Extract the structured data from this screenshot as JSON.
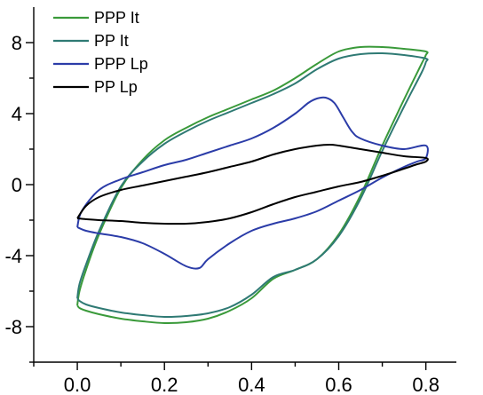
{
  "chart_data": {
    "type": "line",
    "title": "",
    "xlabel": "",
    "ylabel": "",
    "xlim": [
      -0.1,
      0.87
    ],
    "ylim": [
      -10,
      10
    ],
    "xticks": [
      0.0,
      0.2,
      0.4,
      0.6,
      0.8
    ],
    "xtick_labels": [
      "0.0",
      "0.2",
      "0.4",
      "0.6",
      "0.8"
    ],
    "xtick_minor": [
      -0.1,
      0.1,
      0.3,
      0.5,
      0.7
    ],
    "yticks": [
      -8,
      -4,
      0,
      4,
      8
    ],
    "ytick_labels": [
      "-8",
      "-4",
      "0",
      "4",
      "8"
    ],
    "ytick_minor": [
      -10,
      -6,
      -2,
      2,
      6
    ],
    "grid": false,
    "legend_position": "top-left",
    "series": [
      {
        "name": "PPP It",
        "color": "#3a9a3a",
        "x": [
          0.0,
          0.005,
          0.02,
          0.05,
          0.1,
          0.15,
          0.2,
          0.25,
          0.3,
          0.35,
          0.4,
          0.45,
          0.5,
          0.55,
          0.6,
          0.65,
          0.7,
          0.75,
          0.8,
          0.8,
          0.79,
          0.75,
          0.7,
          0.65,
          0.6,
          0.55,
          0.5,
          0.45,
          0.4,
          0.35,
          0.3,
          0.25,
          0.2,
          0.15,
          0.1,
          0.05,
          0.02,
          0.005,
          0.0
        ],
        "y": [
          -6.8,
          -6.0,
          -4.8,
          -2.8,
          -0.2,
          1.4,
          2.5,
          3.2,
          3.8,
          4.3,
          4.8,
          5.3,
          6.0,
          6.8,
          7.5,
          7.75,
          7.75,
          7.65,
          7.5,
          7.3,
          6.8,
          4.8,
          2.2,
          -0.6,
          -2.8,
          -4.2,
          -4.8,
          -5.3,
          -6.4,
          -7.1,
          -7.55,
          -7.75,
          -7.8,
          -7.7,
          -7.55,
          -7.3,
          -7.1,
          -6.95,
          -6.8
        ]
      },
      {
        "name": "PP It",
        "color": "#2f7a74",
        "x": [
          0.0,
          0.005,
          0.02,
          0.05,
          0.1,
          0.15,
          0.2,
          0.25,
          0.3,
          0.35,
          0.4,
          0.45,
          0.5,
          0.55,
          0.6,
          0.65,
          0.7,
          0.75,
          0.8,
          0.8,
          0.79,
          0.75,
          0.7,
          0.65,
          0.6,
          0.55,
          0.5,
          0.45,
          0.4,
          0.35,
          0.3,
          0.25,
          0.2,
          0.15,
          0.1,
          0.05,
          0.02,
          0.005,
          0.0
        ],
        "y": [
          -6.4,
          -5.6,
          -4.5,
          -2.6,
          -0.1,
          1.3,
          2.3,
          3.0,
          3.6,
          4.1,
          4.6,
          5.1,
          5.7,
          6.5,
          7.1,
          7.35,
          7.4,
          7.3,
          7.1,
          6.9,
          6.3,
          4.4,
          1.9,
          -0.8,
          -2.9,
          -4.2,
          -4.8,
          -5.2,
          -6.2,
          -6.9,
          -7.25,
          -7.4,
          -7.45,
          -7.35,
          -7.2,
          -6.95,
          -6.75,
          -6.55,
          -6.4
        ]
      },
      {
        "name": "PPP Lp",
        "color": "#2b3ca8",
        "x": [
          0.0,
          0.01,
          0.05,
          0.1,
          0.15,
          0.2,
          0.25,
          0.3,
          0.35,
          0.4,
          0.45,
          0.5,
          0.53,
          0.55,
          0.57,
          0.59,
          0.61,
          0.63,
          0.65,
          0.7,
          0.75,
          0.8,
          0.8,
          0.78,
          0.75,
          0.7,
          0.65,
          0.6,
          0.55,
          0.5,
          0.45,
          0.4,
          0.35,
          0.3,
          0.28,
          0.25,
          0.2,
          0.15,
          0.1,
          0.05,
          0.02,
          0.0
        ],
        "y": [
          -2.4,
          -1.5,
          -0.3,
          0.3,
          0.7,
          1.1,
          1.4,
          1.8,
          2.2,
          2.6,
          3.2,
          4.0,
          4.6,
          4.85,
          4.9,
          4.6,
          3.8,
          3.0,
          2.6,
          2.2,
          2.0,
          2.2,
          1.5,
          1.3,
          1.0,
          0.4,
          -0.3,
          -0.9,
          -1.5,
          -1.9,
          -2.2,
          -2.6,
          -3.3,
          -4.2,
          -4.7,
          -4.6,
          -3.9,
          -3.3,
          -2.95,
          -2.75,
          -2.6,
          -2.4
        ]
      },
      {
        "name": "PP Lp",
        "color": "#000000",
        "x": [
          0.0,
          0.02,
          0.05,
          0.1,
          0.15,
          0.2,
          0.25,
          0.3,
          0.35,
          0.4,
          0.45,
          0.5,
          0.55,
          0.58,
          0.6,
          0.65,
          0.7,
          0.75,
          0.8,
          0.8,
          0.78,
          0.75,
          0.7,
          0.65,
          0.6,
          0.55,
          0.5,
          0.45,
          0.4,
          0.35,
          0.3,
          0.25,
          0.2,
          0.15,
          0.1,
          0.05,
          0.02,
          0.0
        ],
        "y": [
          -1.9,
          -1.2,
          -0.7,
          -0.3,
          -0.05,
          0.2,
          0.45,
          0.7,
          1.0,
          1.3,
          1.7,
          2.0,
          2.2,
          2.25,
          2.2,
          2.0,
          1.8,
          1.6,
          1.5,
          1.3,
          1.15,
          0.9,
          0.5,
          0.15,
          -0.1,
          -0.4,
          -0.7,
          -1.1,
          -1.55,
          -1.9,
          -2.1,
          -2.2,
          -2.2,
          -2.15,
          -2.05,
          -2.0,
          -1.95,
          -1.9
        ]
      }
    ]
  }
}
